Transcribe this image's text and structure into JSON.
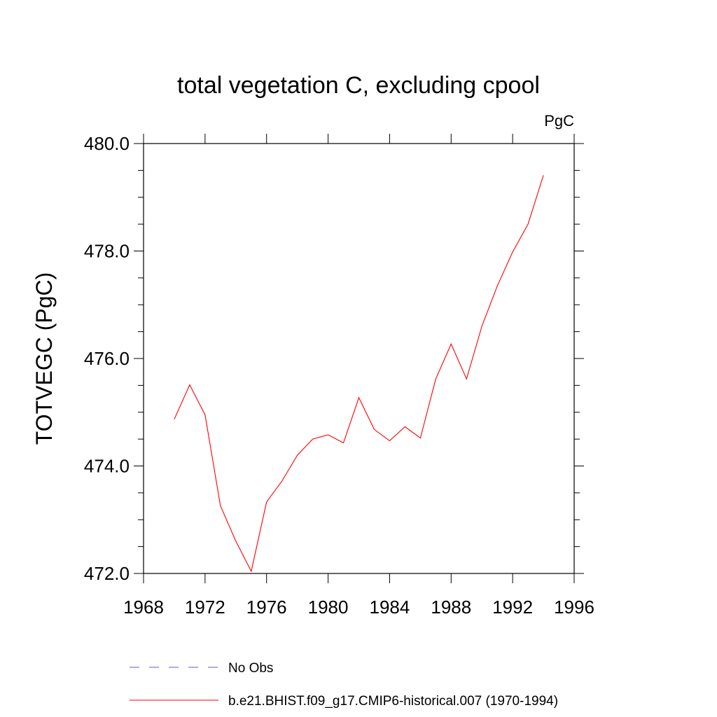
{
  "chart_data": {
    "type": "line",
    "title": "total vegetation C, excluding cpool",
    "units": "PgC",
    "ylabel": "TOTVEGC  (PgC)",
    "xlabel": "",
    "xlim": [
      1968,
      1996
    ],
    "ylim": [
      472.0,
      480.0
    ],
    "x_ticks": [
      1968,
      1972,
      1976,
      1980,
      1984,
      1988,
      1992,
      1996
    ],
    "y_ticks": [
      "472.0",
      "474.0",
      "476.0",
      "478.0",
      "480.0"
    ],
    "y_tick_values": [
      472,
      474,
      476,
      478,
      480
    ],
    "grid": false,
    "legend_position": "bottom",
    "series": [
      {
        "name": "b.e21.BHIST.f09_g17.CMIP6-historical.007 (1970-1994)",
        "color": "#ff0000",
        "style": "solid",
        "x": [
          1970,
          1971,
          1972,
          1973,
          1974,
          1975,
          1976,
          1977,
          1978,
          1979,
          1980,
          1981,
          1982,
          1983,
          1984,
          1985,
          1986,
          1987,
          1988,
          1989,
          1990,
          1991,
          1992,
          1993,
          1994
        ],
        "values": [
          474.87,
          475.51,
          474.95,
          473.26,
          472.6,
          472.04,
          473.33,
          473.72,
          474.2,
          474.5,
          474.58,
          474.43,
          475.27,
          474.68,
          474.47,
          474.73,
          474.52,
          475.62,
          476.27,
          475.62,
          476.6,
          477.35,
          477.98,
          478.5,
          479.41
        ]
      }
    ],
    "legend": [
      {
        "label": "No Obs",
        "color": "#5c5cc8",
        "style": "dashed"
      },
      {
        "label": "b.e21.BHIST.f09_g17.CMIP6-historical.007 (1970-1994)",
        "color": "#ff0000",
        "style": "solid"
      }
    ]
  }
}
